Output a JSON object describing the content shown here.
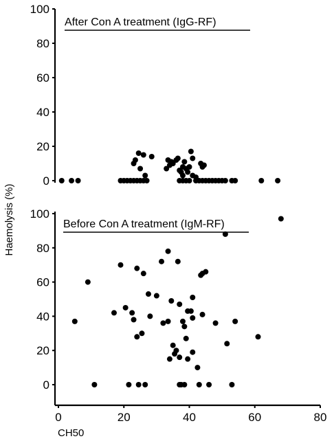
{
  "chart_data": [
    {
      "type": "scatter",
      "title": "After Con A treatment (IgG-RF)",
      "xlabel": "CH50",
      "ylabel": "Haemolysis (%)",
      "xlim": [
        0,
        80
      ],
      "ylim": [
        0,
        100
      ],
      "yticks": [
        "0",
        "20",
        "40",
        "60",
        "80",
        "100"
      ],
      "grid": false,
      "points": [
        [
          1,
          0
        ],
        [
          4,
          0
        ],
        [
          6,
          0
        ],
        [
          19,
          0
        ],
        [
          20,
          0
        ],
        [
          21,
          0
        ],
        [
          22,
          0
        ],
        [
          23,
          0
        ],
        [
          24,
          0
        ],
        [
          25,
          0
        ],
        [
          26,
          0
        ],
        [
          27,
          0
        ],
        [
          23,
          10
        ],
        [
          23.5,
          12
        ],
        [
          24.5,
          16
        ],
        [
          25,
          7
        ],
        [
          26,
          15
        ],
        [
          26.5,
          3
        ],
        [
          28.5,
          14
        ],
        [
          33,
          7
        ],
        [
          33.5,
          12
        ],
        [
          34,
          9
        ],
        [
          34.5,
          11
        ],
        [
          35,
          10
        ],
        [
          36,
          12
        ],
        [
          36.5,
          13
        ],
        [
          37,
          6
        ],
        [
          37.5,
          5
        ],
        [
          38,
          3
        ],
        [
          38,
          8
        ],
        [
          38.5,
          11
        ],
        [
          39,
          7
        ],
        [
          39.5,
          5
        ],
        [
          40,
          8
        ],
        [
          40.5,
          17
        ],
        [
          41,
          3
        ],
        [
          41,
          13
        ],
        [
          42,
          2
        ],
        [
          43.5,
          10
        ],
        [
          44,
          8
        ],
        [
          44.5,
          9
        ],
        [
          37,
          0
        ],
        [
          38,
          0
        ],
        [
          39,
          0
        ],
        [
          40,
          0
        ],
        [
          42,
          0
        ],
        [
          43,
          0
        ],
        [
          44,
          0
        ],
        [
          45,
          0
        ],
        [
          46,
          0
        ],
        [
          47,
          0
        ],
        [
          48,
          0
        ],
        [
          49,
          0
        ],
        [
          50,
          0
        ],
        [
          51,
          0
        ],
        [
          53,
          0
        ],
        [
          54,
          0
        ],
        [
          62,
          0
        ],
        [
          67,
          0
        ]
      ]
    },
    {
      "type": "scatter",
      "title": "Before Con A treatment (IgM-RF)",
      "xlabel": "CH50",
      "ylabel": "Haemolysis (%)",
      "xlim": [
        0,
        80
      ],
      "ylim": [
        0,
        100
      ],
      "xticks": [
        "0",
        "20",
        "40",
        "60",
        "80"
      ],
      "yticks": [
        "0",
        "20",
        "40",
        "60",
        "80",
        "100"
      ],
      "grid": false,
      "points": [
        [
          5,
          37
        ],
        [
          9,
          60
        ],
        [
          11,
          0
        ],
        [
          17,
          42
        ],
        [
          19,
          70
        ],
        [
          20.5,
          45
        ],
        [
          21.5,
          0
        ],
        [
          22.5,
          42
        ],
        [
          23,
          38
        ],
        [
          24,
          68
        ],
        [
          24,
          28
        ],
        [
          24.5,
          0
        ],
        [
          25.5,
          30
        ],
        [
          26,
          65
        ],
        [
          26.5,
          0
        ],
        [
          27.5,
          53
        ],
        [
          28,
          40
        ],
        [
          30,
          52
        ],
        [
          31.5,
          72
        ],
        [
          32,
          36
        ],
        [
          33.5,
          78
        ],
        [
          33.5,
          37
        ],
        [
          34,
          15
        ],
        [
          34.5,
          49
        ],
        [
          35,
          23
        ],
        [
          35.5,
          18
        ],
        [
          36,
          20
        ],
        [
          36.5,
          72
        ],
        [
          37,
          47
        ],
        [
          37,
          16
        ],
        [
          37,
          0
        ],
        [
          37.5,
          0
        ],
        [
          38,
          37
        ],
        [
          38.5,
          34
        ],
        [
          38.5,
          0
        ],
        [
          39,
          27
        ],
        [
          39.5,
          15
        ],
        [
          39.5,
          43
        ],
        [
          40.5,
          43
        ],
        [
          41,
          51
        ],
        [
          41,
          19
        ],
        [
          41,
          39
        ],
        [
          42.5,
          10
        ],
        [
          43,
          0
        ],
        [
          43.5,
          64
        ],
        [
          44,
          65
        ],
        [
          44,
          41
        ],
        [
          45,
          66
        ],
        [
          46,
          0
        ],
        [
          48,
          36
        ],
        [
          51,
          88
        ],
        [
          51.5,
          24
        ],
        [
          53,
          0
        ],
        [
          54,
          37
        ],
        [
          61,
          28
        ],
        [
          68,
          97
        ]
      ]
    }
  ]
}
